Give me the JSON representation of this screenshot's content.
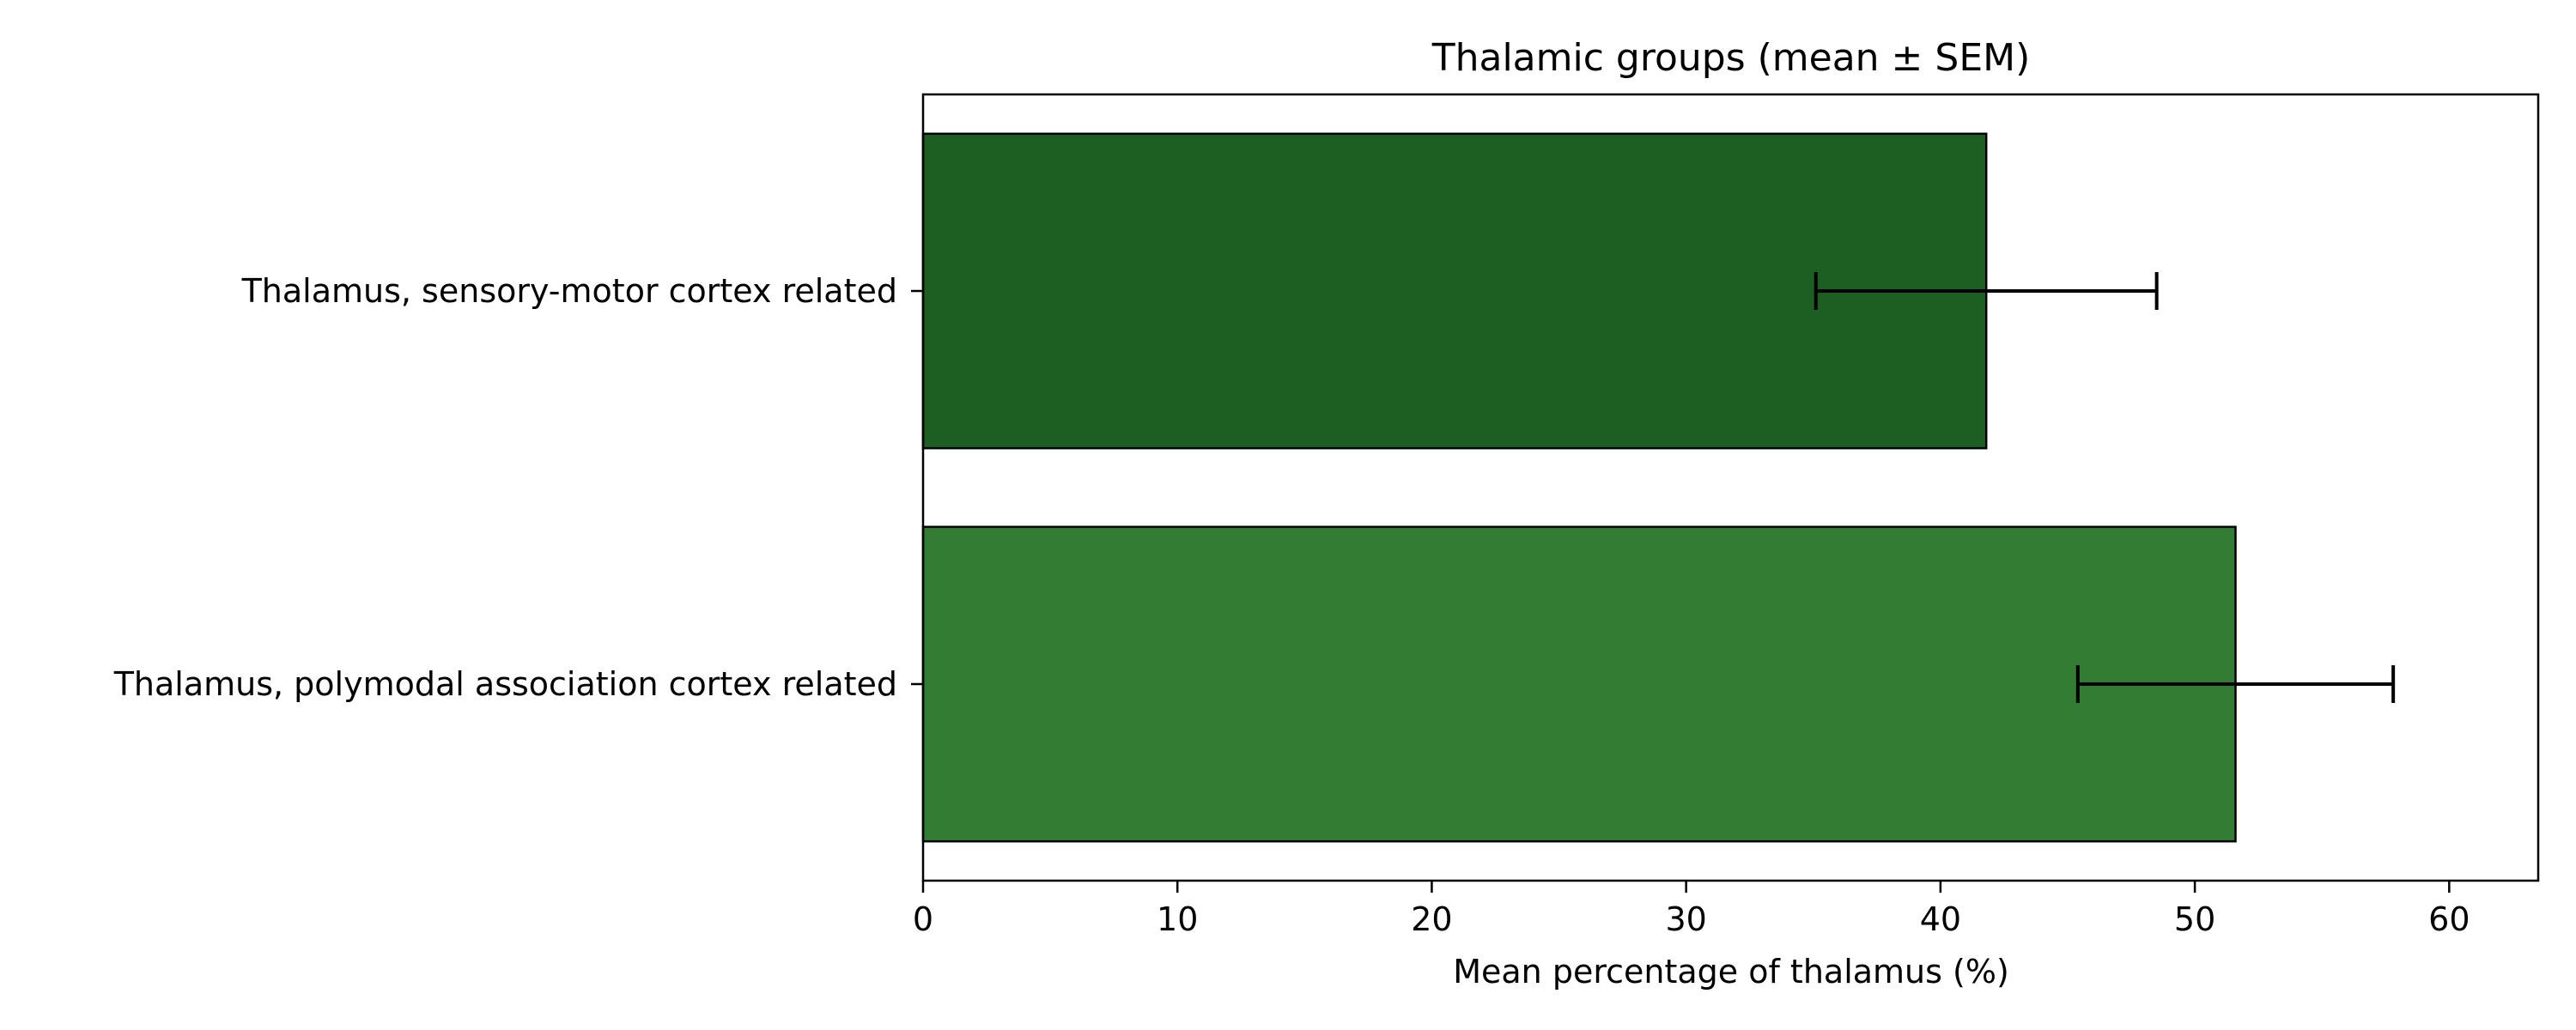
{
  "chart_data": {
    "type": "bar",
    "orientation": "horizontal",
    "title": "Thalamic groups (mean ± SEM)",
    "xlabel": "Mean percentage of thalamus (%)",
    "ylabel": "",
    "xlim": [
      0,
      63.5
    ],
    "xticks": [
      0,
      10,
      20,
      30,
      40,
      50,
      60
    ],
    "grid": false,
    "categories": [
      "Thalamus, sensory-motor cortex related",
      "Thalamus, polymodal association cortex related"
    ],
    "values": [
      41.8,
      51.6
    ],
    "errors": [
      6.7,
      6.2
    ],
    "colors": [
      "#1d5e22",
      "#307d33"
    ],
    "edge_color": "#000000"
  }
}
